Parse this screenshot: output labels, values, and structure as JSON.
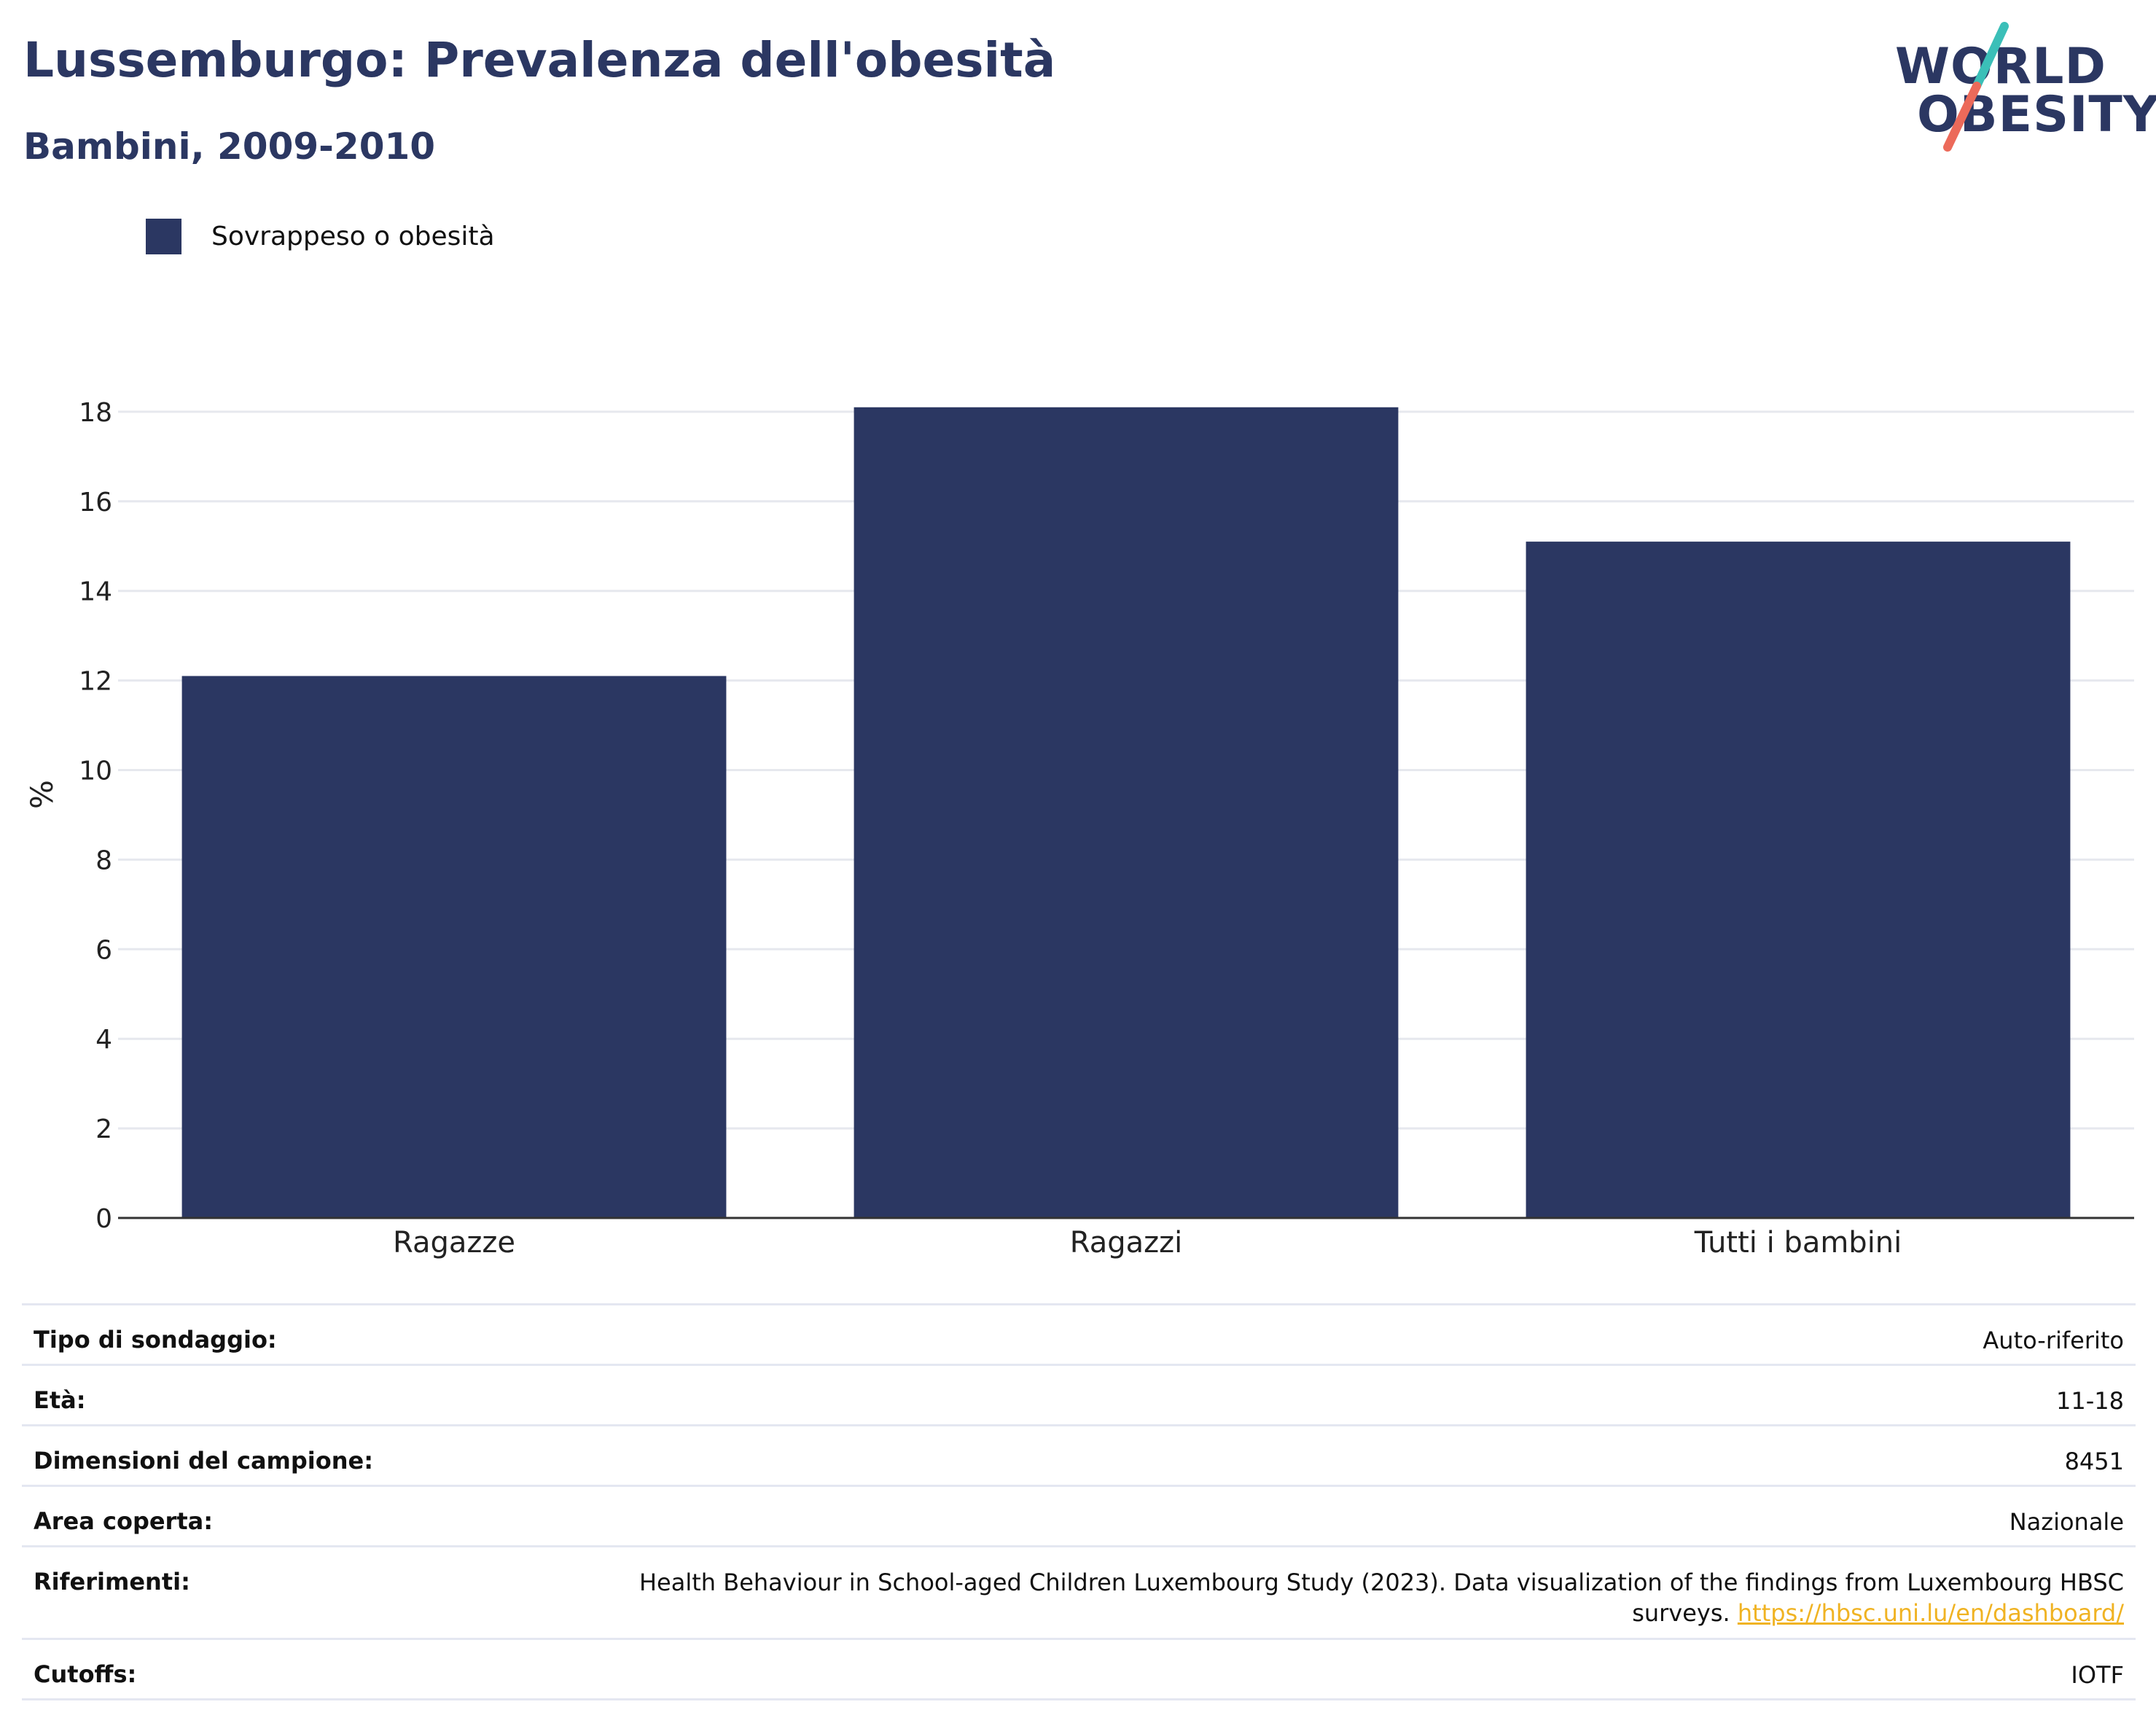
{
  "header": {
    "title": "Lussemburgo: Prevalenza dell'obesità",
    "subtitle": "Bambini, 2009-2010"
  },
  "logo": {
    "line1": "WORLD",
    "line2": "OBESITY",
    "colors": {
      "text": "#2b3762",
      "slash_top": "#3bbfb8",
      "slash_bottom": "#ec6a5a"
    }
  },
  "colors": {
    "bar": "#2b3762",
    "title": "#2b3762",
    "grid": "#e6e8ee",
    "link": "#f0b323"
  },
  "chart_data": {
    "type": "bar",
    "categories": [
      "Ragazze",
      "Ragazzi",
      "Tutti i bambini"
    ],
    "series": [
      {
        "name": "Sovrappeso o obesità",
        "values": [
          12.1,
          18.1,
          15.1
        ]
      }
    ],
    "title": "Lussemburgo: Prevalenza dell'obesità",
    "subtitle": "Bambini, 2009-2010",
    "xlabel": "",
    "ylabel": "%",
    "ylim": [
      0,
      18.5
    ],
    "yticks": [
      0,
      2,
      4,
      6,
      8,
      10,
      12,
      14,
      16,
      18
    ],
    "grid": true,
    "legend_position": "top-left"
  },
  "meta": {
    "rows": [
      {
        "key": "Tipo di sondaggio:",
        "value": "Auto-riferito"
      },
      {
        "key": "Età:",
        "value": "11-18"
      },
      {
        "key": "Dimensioni del campione:",
        "value": "8451"
      },
      {
        "key": "Area coperta:",
        "value": "Nazionale"
      },
      {
        "key": "Riferimenti:",
        "value": "Health Behaviour in School-aged Children Luxembourg Study (2023). Data visualization of the findings from Luxembourg HBSC surveys.",
        "link": "https://hbsc.uni.lu/en/dashboard/"
      },
      {
        "key": "Cutoffs:",
        "value": "IOTF"
      }
    ]
  }
}
